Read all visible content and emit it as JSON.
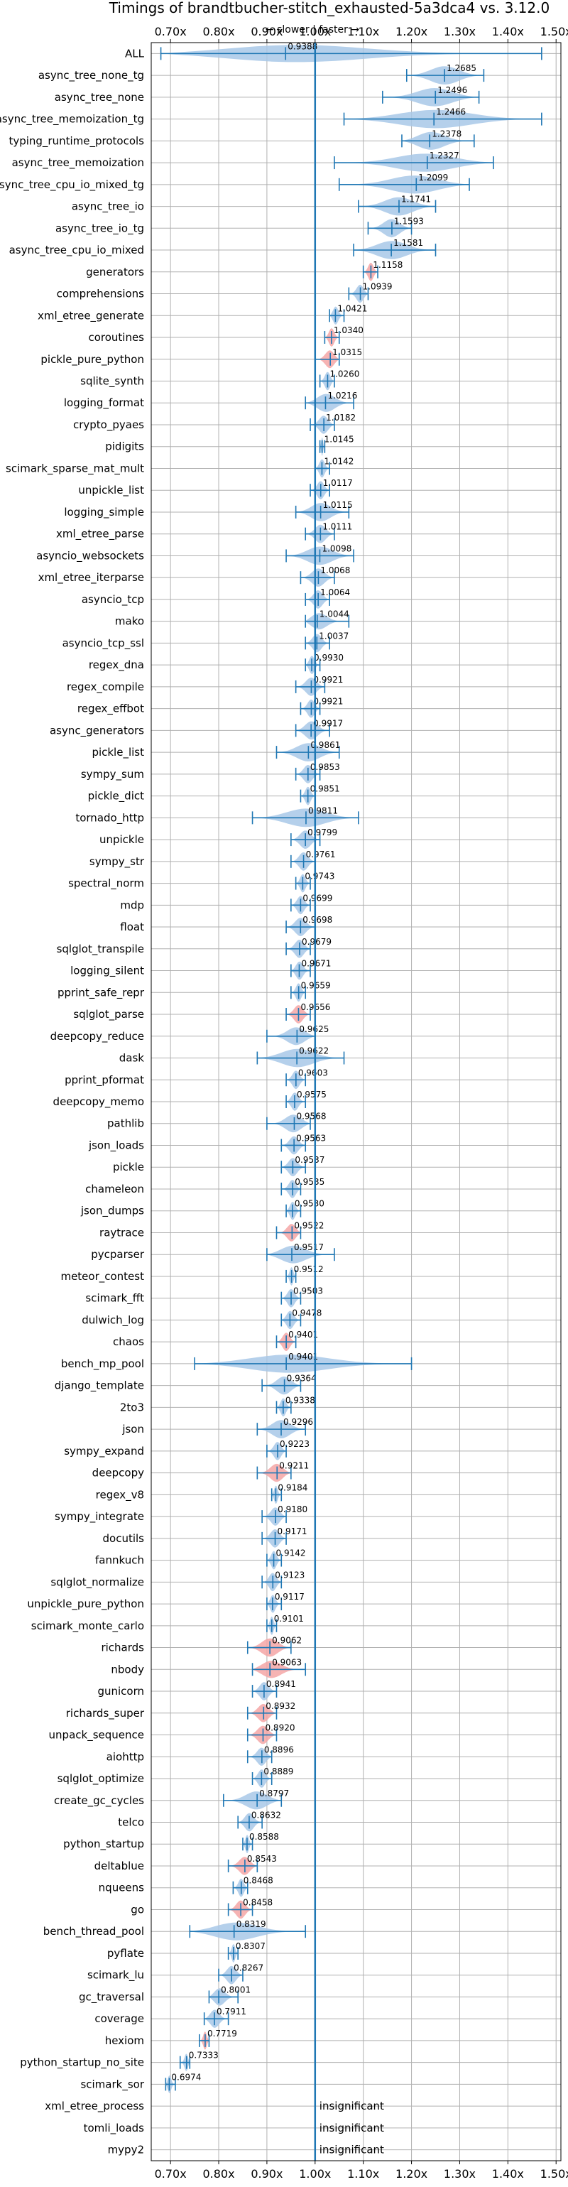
{
  "chart_data": {
    "type": "violin",
    "title": "Timings of brandtbucher-stitch_exhausted-5a3dca4 vs. 3.12.0",
    "subtitle": "← slower | faster →",
    "xlim": [
      0.66,
      1.51
    ],
    "reference_line": 1.0,
    "x_ticks": [
      0.7,
      0.8,
      0.9,
      1.0,
      1.1,
      1.2,
      1.3,
      1.4,
      1.5
    ],
    "x_tick_labels": [
      "0.70x",
      "0.80x",
      "0.90x",
      "1.00x",
      "1.10x",
      "1.20x",
      "1.30x",
      "1.40x",
      "1.50x"
    ],
    "insignificant_label": "insignificant",
    "colors": {
      "faster": "#a8c8e8",
      "slower": "#f4a6a6",
      "line": "#1f77b4",
      "grid": "#b0b0b0"
    },
    "benchmarks": [
      {
        "name": "ALL",
        "value": 0.9388,
        "label": "0.9388",
        "min": 0.68,
        "max": 1.47,
        "sig": "faster"
      },
      {
        "name": "async_tree_none_tg",
        "value": 1.2685,
        "label": "1.2685",
        "min": 1.19,
        "max": 1.35,
        "sig": "faster"
      },
      {
        "name": "async_tree_none",
        "value": 1.2496,
        "label": "1.2496",
        "min": 1.14,
        "max": 1.34,
        "sig": "faster"
      },
      {
        "name": "async_tree_memoization_tg",
        "value": 1.2466,
        "label": "1.2466",
        "min": 1.06,
        "max": 1.47,
        "sig": "faster"
      },
      {
        "name": "typing_runtime_protocols",
        "value": 1.2378,
        "label": "1.2378",
        "min": 1.18,
        "max": 1.33,
        "sig": "faster"
      },
      {
        "name": "async_tree_memoization",
        "value": 1.2327,
        "label": "1.2327",
        "min": 1.04,
        "max": 1.37,
        "sig": "faster"
      },
      {
        "name": "async_tree_cpu_io_mixed_tg",
        "value": 1.2099,
        "label": "1.2099",
        "min": 1.05,
        "max": 1.32,
        "sig": "faster"
      },
      {
        "name": "async_tree_io",
        "value": 1.1741,
        "label": "1.1741",
        "min": 1.09,
        "max": 1.25,
        "sig": "faster"
      },
      {
        "name": "async_tree_io_tg",
        "value": 1.1593,
        "label": "1.1593",
        "min": 1.11,
        "max": 1.2,
        "sig": "faster"
      },
      {
        "name": "async_tree_cpu_io_mixed",
        "value": 1.1581,
        "label": "1.1581",
        "min": 1.08,
        "max": 1.25,
        "sig": "faster"
      },
      {
        "name": "generators",
        "value": 1.1158,
        "label": "1.1158",
        "min": 1.1,
        "max": 1.13,
        "sig": "slower"
      },
      {
        "name": "comprehensions",
        "value": 1.0939,
        "label": "1.0939",
        "min": 1.07,
        "max": 1.11,
        "sig": "faster"
      },
      {
        "name": "xml_etree_generate",
        "value": 1.0421,
        "label": "1.0421",
        "min": 1.03,
        "max": 1.06,
        "sig": "faster"
      },
      {
        "name": "coroutines",
        "value": 1.034,
        "label": "1.0340",
        "min": 1.02,
        "max": 1.05,
        "sig": "slower"
      },
      {
        "name": "pickle_pure_python",
        "value": 1.0315,
        "label": "1.0315",
        "min": 1.0,
        "max": 1.05,
        "sig": "slower"
      },
      {
        "name": "sqlite_synth",
        "value": 1.026,
        "label": "1.0260",
        "min": 1.01,
        "max": 1.04,
        "sig": "faster"
      },
      {
        "name": "logging_format",
        "value": 1.0216,
        "label": "1.0216",
        "min": 0.98,
        "max": 1.08,
        "sig": "faster"
      },
      {
        "name": "crypto_pyaes",
        "value": 1.0182,
        "label": "1.0182",
        "min": 0.99,
        "max": 1.04,
        "sig": "faster"
      },
      {
        "name": "pidigits",
        "value": 1.0145,
        "label": "1.0145",
        "min": 1.01,
        "max": 1.02,
        "sig": "faster"
      },
      {
        "name": "scimark_sparse_mat_mult",
        "value": 1.0142,
        "label": "1.0142",
        "min": 1.0,
        "max": 1.03,
        "sig": "faster"
      },
      {
        "name": "unpickle_list",
        "value": 1.0117,
        "label": "1.0117",
        "min": 0.99,
        "max": 1.03,
        "sig": "faster"
      },
      {
        "name": "logging_simple",
        "value": 1.0115,
        "label": "1.0115",
        "min": 0.96,
        "max": 1.07,
        "sig": "faster"
      },
      {
        "name": "xml_etree_parse",
        "value": 1.0111,
        "label": "1.0111",
        "min": 0.98,
        "max": 1.04,
        "sig": "faster"
      },
      {
        "name": "asyncio_websockets",
        "value": 1.0098,
        "label": "1.0098",
        "min": 0.94,
        "max": 1.08,
        "sig": "faster"
      },
      {
        "name": "xml_etree_iterparse",
        "value": 1.0068,
        "label": "1.0068",
        "min": 0.97,
        "max": 1.04,
        "sig": "faster"
      },
      {
        "name": "asyncio_tcp",
        "value": 1.0064,
        "label": "1.0064",
        "min": 0.98,
        "max": 1.03,
        "sig": "faster"
      },
      {
        "name": "mako",
        "value": 1.0044,
        "label": "1.0044",
        "min": 0.98,
        "max": 1.07,
        "sig": "faster"
      },
      {
        "name": "asyncio_tcp_ssl",
        "value": 1.0037,
        "label": "1.0037",
        "min": 0.98,
        "max": 1.03,
        "sig": "faster"
      },
      {
        "name": "regex_dna",
        "value": 0.993,
        "label": "0.9930",
        "min": 0.98,
        "max": 1.01,
        "sig": "faster"
      },
      {
        "name": "regex_compile",
        "value": 0.9921,
        "label": "0.9921",
        "min": 0.96,
        "max": 1.02,
        "sig": "faster"
      },
      {
        "name": "regex_effbot",
        "value": 0.9921,
        "label": "0.9921",
        "min": 0.97,
        "max": 1.01,
        "sig": "faster"
      },
      {
        "name": "async_generators",
        "value": 0.9917,
        "label": "0.9917",
        "min": 0.96,
        "max": 1.03,
        "sig": "faster"
      },
      {
        "name": "pickle_list",
        "value": 0.9861,
        "label": "0.9861",
        "min": 0.92,
        "max": 1.05,
        "sig": "faster"
      },
      {
        "name": "sympy_sum",
        "value": 0.9853,
        "label": "0.9853",
        "min": 0.96,
        "max": 1.01,
        "sig": "faster"
      },
      {
        "name": "pickle_dict",
        "value": 0.9851,
        "label": "0.9851",
        "min": 0.97,
        "max": 1.0,
        "sig": "faster"
      },
      {
        "name": "tornado_http",
        "value": 0.9811,
        "label": "0.9811",
        "min": 0.87,
        "max": 1.09,
        "sig": "faster"
      },
      {
        "name": "unpickle",
        "value": 0.9799,
        "label": "0.9799",
        "min": 0.95,
        "max": 1.01,
        "sig": "faster"
      },
      {
        "name": "sympy_str",
        "value": 0.9761,
        "label": "0.9761",
        "min": 0.95,
        "max": 1.0,
        "sig": "faster"
      },
      {
        "name": "spectral_norm",
        "value": 0.9743,
        "label": "0.9743",
        "min": 0.96,
        "max": 0.99,
        "sig": "faster"
      },
      {
        "name": "mdp",
        "value": 0.9699,
        "label": "0.9699",
        "min": 0.95,
        "max": 0.99,
        "sig": "faster"
      },
      {
        "name": "float",
        "value": 0.9698,
        "label": "0.9698",
        "min": 0.94,
        "max": 1.0,
        "sig": "faster"
      },
      {
        "name": "sqlglot_transpile",
        "value": 0.9679,
        "label": "0.9679",
        "min": 0.94,
        "max": 0.99,
        "sig": "faster"
      },
      {
        "name": "logging_silent",
        "value": 0.9671,
        "label": "0.9671",
        "min": 0.95,
        "max": 0.99,
        "sig": "faster"
      },
      {
        "name": "pprint_safe_repr",
        "value": 0.9659,
        "label": "0.9659",
        "min": 0.95,
        "max": 0.98,
        "sig": "faster"
      },
      {
        "name": "sqlglot_parse",
        "value": 0.9656,
        "label": "0.9656",
        "min": 0.94,
        "max": 0.99,
        "sig": "slower"
      },
      {
        "name": "deepcopy_reduce",
        "value": 0.9625,
        "label": "0.9625",
        "min": 0.9,
        "max": 1.0,
        "sig": "faster"
      },
      {
        "name": "dask",
        "value": 0.9622,
        "label": "0.9622",
        "min": 0.88,
        "max": 1.06,
        "sig": "faster"
      },
      {
        "name": "pprint_pformat",
        "value": 0.9603,
        "label": "0.9603",
        "min": 0.94,
        "max": 0.98,
        "sig": "faster"
      },
      {
        "name": "deepcopy_memo",
        "value": 0.9575,
        "label": "0.9575",
        "min": 0.94,
        "max": 0.98,
        "sig": "faster"
      },
      {
        "name": "pathlib",
        "value": 0.9568,
        "label": "0.9568",
        "min": 0.9,
        "max": 0.99,
        "sig": "faster"
      },
      {
        "name": "json_loads",
        "value": 0.9563,
        "label": "0.9563",
        "min": 0.93,
        "max": 0.98,
        "sig": "faster"
      },
      {
        "name": "pickle",
        "value": 0.9537,
        "label": "0.9537",
        "min": 0.93,
        "max": 0.98,
        "sig": "faster"
      },
      {
        "name": "chameleon",
        "value": 0.9535,
        "label": "0.9535",
        "min": 0.93,
        "max": 0.97,
        "sig": "faster"
      },
      {
        "name": "json_dumps",
        "value": 0.953,
        "label": "0.9530",
        "min": 0.94,
        "max": 0.97,
        "sig": "faster"
      },
      {
        "name": "raytrace",
        "value": 0.9522,
        "label": "0.9522",
        "min": 0.92,
        "max": 0.97,
        "sig": "slower"
      },
      {
        "name": "pycparser",
        "value": 0.9517,
        "label": "0.9517",
        "min": 0.9,
        "max": 1.04,
        "sig": "faster"
      },
      {
        "name": "meteor_contest",
        "value": 0.9512,
        "label": "0.9512",
        "min": 0.94,
        "max": 0.96,
        "sig": "faster"
      },
      {
        "name": "scimark_fft",
        "value": 0.9503,
        "label": "0.9503",
        "min": 0.93,
        "max": 0.97,
        "sig": "faster"
      },
      {
        "name": "dulwich_log",
        "value": 0.9478,
        "label": "0.9478",
        "min": 0.93,
        "max": 0.97,
        "sig": "faster"
      },
      {
        "name": "chaos",
        "value": 0.9401,
        "label": "0.9401",
        "min": 0.92,
        "max": 0.96,
        "sig": "slower"
      },
      {
        "name": "bench_mp_pool",
        "value": 0.9401,
        "label": "0.9401",
        "min": 0.75,
        "max": 1.2,
        "sig": "faster"
      },
      {
        "name": "django_template",
        "value": 0.9364,
        "label": "0.9364",
        "min": 0.89,
        "max": 0.97,
        "sig": "faster"
      },
      {
        "name": "2to3",
        "value": 0.9338,
        "label": "0.9338",
        "min": 0.92,
        "max": 0.95,
        "sig": "faster"
      },
      {
        "name": "json",
        "value": 0.9296,
        "label": "0.9296",
        "min": 0.88,
        "max": 0.98,
        "sig": "faster"
      },
      {
        "name": "sympy_expand",
        "value": 0.9223,
        "label": "0.9223",
        "min": 0.9,
        "max": 0.94,
        "sig": "faster"
      },
      {
        "name": "deepcopy",
        "value": 0.9211,
        "label": "0.9211",
        "min": 0.88,
        "max": 0.95,
        "sig": "slower"
      },
      {
        "name": "regex_v8",
        "value": 0.9184,
        "label": "0.9184",
        "min": 0.91,
        "max": 0.93,
        "sig": "faster"
      },
      {
        "name": "sympy_integrate",
        "value": 0.918,
        "label": "0.9180",
        "min": 0.89,
        "max": 0.94,
        "sig": "faster"
      },
      {
        "name": "docutils",
        "value": 0.9171,
        "label": "0.9171",
        "min": 0.89,
        "max": 0.94,
        "sig": "faster"
      },
      {
        "name": "fannkuch",
        "value": 0.9142,
        "label": "0.9142",
        "min": 0.9,
        "max": 0.93,
        "sig": "faster"
      },
      {
        "name": "sqlglot_normalize",
        "value": 0.9123,
        "label": "0.9123",
        "min": 0.89,
        "max": 0.93,
        "sig": "faster"
      },
      {
        "name": "unpickle_pure_python",
        "value": 0.9117,
        "label": "0.9117",
        "min": 0.9,
        "max": 0.93,
        "sig": "faster"
      },
      {
        "name": "scimark_monte_carlo",
        "value": 0.9101,
        "label": "0.9101",
        "min": 0.9,
        "max": 0.92,
        "sig": "faster"
      },
      {
        "name": "richards",
        "value": 0.9062,
        "label": "0.9062",
        "min": 0.86,
        "max": 0.95,
        "sig": "slower"
      },
      {
        "name": "nbody",
        "value": 0.9063,
        "label": "0.9063",
        "min": 0.87,
        "max": 0.98,
        "sig": "slower"
      },
      {
        "name": "gunicorn",
        "value": 0.8941,
        "label": "0.8941",
        "min": 0.87,
        "max": 0.92,
        "sig": "faster"
      },
      {
        "name": "richards_super",
        "value": 0.8932,
        "label": "0.8932",
        "min": 0.86,
        "max": 0.92,
        "sig": "slower"
      },
      {
        "name": "unpack_sequence",
        "value": 0.892,
        "label": "0.8920",
        "min": 0.86,
        "max": 0.92,
        "sig": "slower"
      },
      {
        "name": "aiohttp",
        "value": 0.8896,
        "label": "0.8896",
        "min": 0.86,
        "max": 0.91,
        "sig": "faster"
      },
      {
        "name": "sqlglot_optimize",
        "value": 0.8889,
        "label": "0.8889",
        "min": 0.87,
        "max": 0.91,
        "sig": "faster"
      },
      {
        "name": "create_gc_cycles",
        "value": 0.8797,
        "label": "0.8797",
        "min": 0.81,
        "max": 0.93,
        "sig": "faster"
      },
      {
        "name": "telco",
        "value": 0.8632,
        "label": "0.8632",
        "min": 0.84,
        "max": 0.89,
        "sig": "faster"
      },
      {
        "name": "python_startup",
        "value": 0.8588,
        "label": "0.8588",
        "min": 0.85,
        "max": 0.87,
        "sig": "faster"
      },
      {
        "name": "deltablue",
        "value": 0.8543,
        "label": "0.8543",
        "min": 0.82,
        "max": 0.88,
        "sig": "slower"
      },
      {
        "name": "nqueens",
        "value": 0.8468,
        "label": "0.8468",
        "min": 0.83,
        "max": 0.86,
        "sig": "faster"
      },
      {
        "name": "go",
        "value": 0.8458,
        "label": "0.8458",
        "min": 0.82,
        "max": 0.87,
        "sig": "slower"
      },
      {
        "name": "bench_thread_pool",
        "value": 0.8319,
        "label": "0.8319",
        "min": 0.74,
        "max": 0.98,
        "sig": "faster"
      },
      {
        "name": "pyflate",
        "value": 0.8307,
        "label": "0.8307",
        "min": 0.82,
        "max": 0.84,
        "sig": "faster"
      },
      {
        "name": "scimark_lu",
        "value": 0.8267,
        "label": "0.8267",
        "min": 0.8,
        "max": 0.85,
        "sig": "faster"
      },
      {
        "name": "gc_traversal",
        "value": 0.8001,
        "label": "0.8001",
        "min": 0.78,
        "max": 0.84,
        "sig": "faster"
      },
      {
        "name": "coverage",
        "value": 0.7911,
        "label": "0.7911",
        "min": 0.77,
        "max": 0.82,
        "sig": "faster"
      },
      {
        "name": "hexiom",
        "value": 0.7719,
        "label": "0.7719",
        "min": 0.76,
        "max": 0.78,
        "sig": "slower"
      },
      {
        "name": "python_startup_no_site",
        "value": 0.7333,
        "label": "0.7333",
        "min": 0.72,
        "max": 0.74,
        "sig": "faster"
      },
      {
        "name": "scimark_sor",
        "value": 0.6974,
        "label": "0.6974",
        "min": 0.69,
        "max": 0.71,
        "sig": "faster"
      },
      {
        "name": "xml_etree_process",
        "value": null,
        "label": "insignificant",
        "min": null,
        "max": null,
        "sig": "insignificant"
      },
      {
        "name": "tomli_loads",
        "value": null,
        "label": "insignificant",
        "min": null,
        "max": null,
        "sig": "insignificant"
      },
      {
        "name": "mypy2",
        "value": null,
        "label": "insignificant",
        "min": null,
        "max": null,
        "sig": "insignificant"
      }
    ]
  }
}
